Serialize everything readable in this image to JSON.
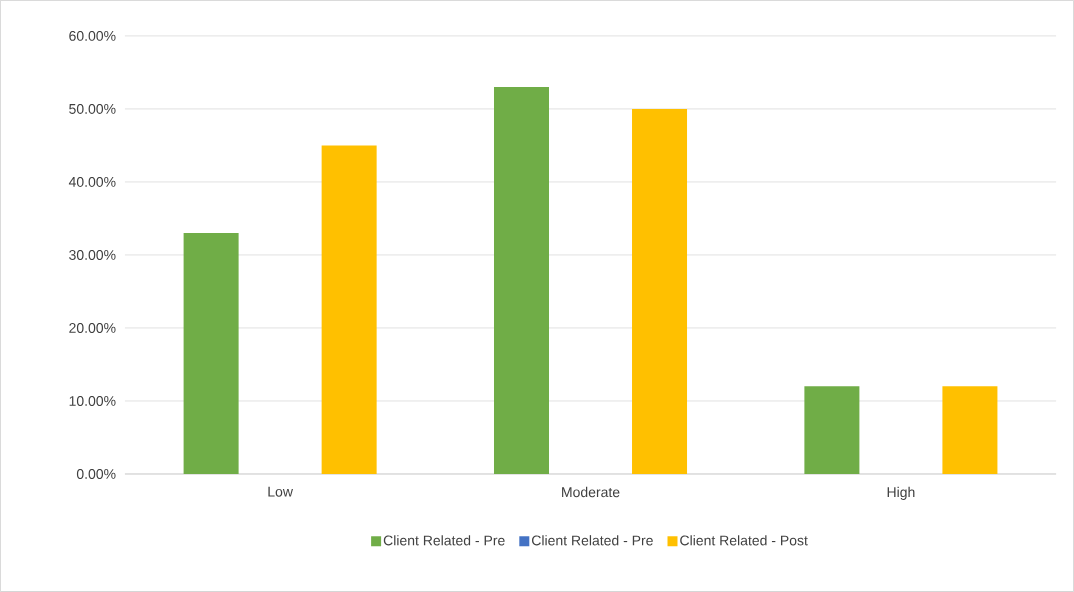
{
  "chart_data": {
    "type": "bar",
    "categories": [
      "Low",
      "Moderate",
      "High"
    ],
    "series": [
      {
        "name": "Client Related - Pre",
        "color": "#70ad47",
        "values": [
          33,
          53,
          12
        ]
      },
      {
        "name": "Client Related - Pre",
        "color": "#4472c4",
        "values": [
          null,
          null,
          null
        ]
      },
      {
        "name": "Client Related - Post",
        "color": "#ffc000",
        "values": [
          45,
          50,
          12
        ]
      }
    ],
    "ylim": [
      0,
      60
    ],
    "yticks": [
      {
        "value": 0,
        "label": "0.00%"
      },
      {
        "value": 10,
        "label": "10.00%"
      },
      {
        "value": 20,
        "label": "20.00%"
      },
      {
        "value": 30,
        "label": "30.00%"
      },
      {
        "value": 40,
        "label": "40.00%"
      },
      {
        "value": 50,
        "label": "50.00%"
      },
      {
        "value": 60,
        "label": "60.00%"
      }
    ],
    "grid": "y",
    "legend": "bottom"
  }
}
